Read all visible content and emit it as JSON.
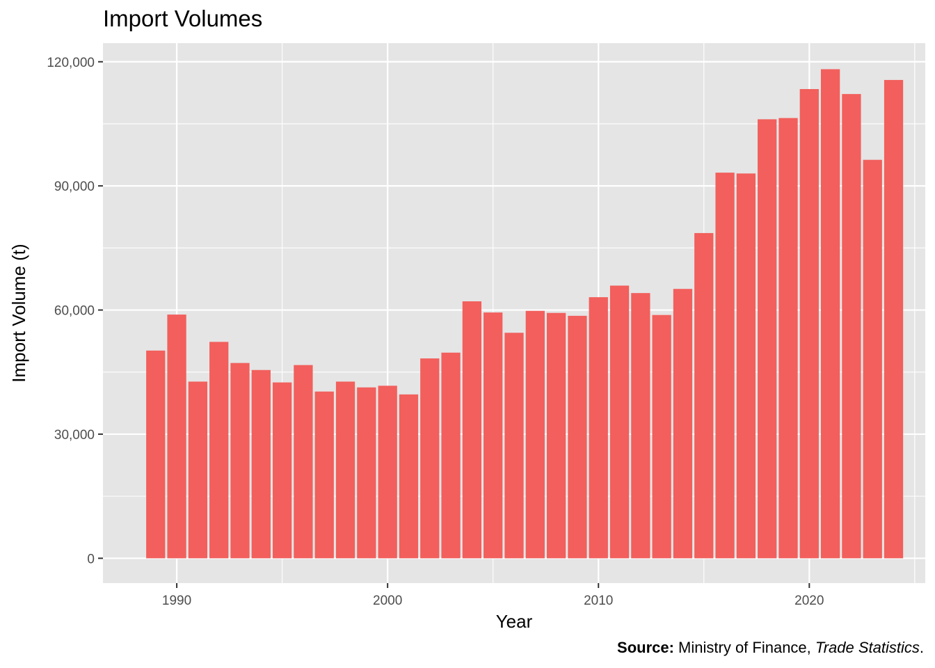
{
  "chart_data": {
    "type": "bar",
    "title": "Import Volumes",
    "xlabel": "Year",
    "ylabel": "Import Volume (t)",
    "x": [
      1989,
      1990,
      1991,
      1992,
      1993,
      1994,
      1995,
      1996,
      1997,
      1998,
      1999,
      2000,
      2001,
      2002,
      2003,
      2004,
      2005,
      2006,
      2007,
      2008,
      2009,
      2010,
      2011,
      2012,
      2013,
      2014,
      2015,
      2016,
      2017,
      2018,
      2019,
      2020,
      2021,
      2022,
      2023,
      2024
    ],
    "values": [
      50200,
      58900,
      42700,
      52300,
      47200,
      45500,
      42500,
      46700,
      40300,
      42700,
      41300,
      41700,
      39600,
      48300,
      49700,
      62100,
      59400,
      54500,
      59800,
      59300,
      58600,
      63100,
      65900,
      64100,
      58800,
      65100,
      78600,
      93200,
      93000,
      106100,
      106400,
      113400,
      118200,
      112200,
      96300,
      115600
    ],
    "xlim": [
      1986.5,
      2025.5
    ],
    "ylim": [
      -6000,
      124500
    ],
    "x_ticks": [
      1990,
      2000,
      2010,
      2020
    ],
    "x_tick_labels": [
      "1990",
      "2000",
      "2010",
      "2020"
    ],
    "y_ticks": [
      0,
      30000,
      60000,
      90000,
      120000
    ],
    "y_tick_labels": [
      "0",
      "30,000",
      "60,000",
      "90,000",
      "120,000"
    ],
    "grid": true,
    "legend": "none",
    "colors": {
      "bar": "#f25f5c",
      "panel": "#e5e5e5",
      "grid": "#ffffff"
    }
  },
  "caption": {
    "source_label": "Source:",
    "source_text": " Ministry of Finance, ",
    "publication": "Trade Statistics",
    "end": "."
  }
}
